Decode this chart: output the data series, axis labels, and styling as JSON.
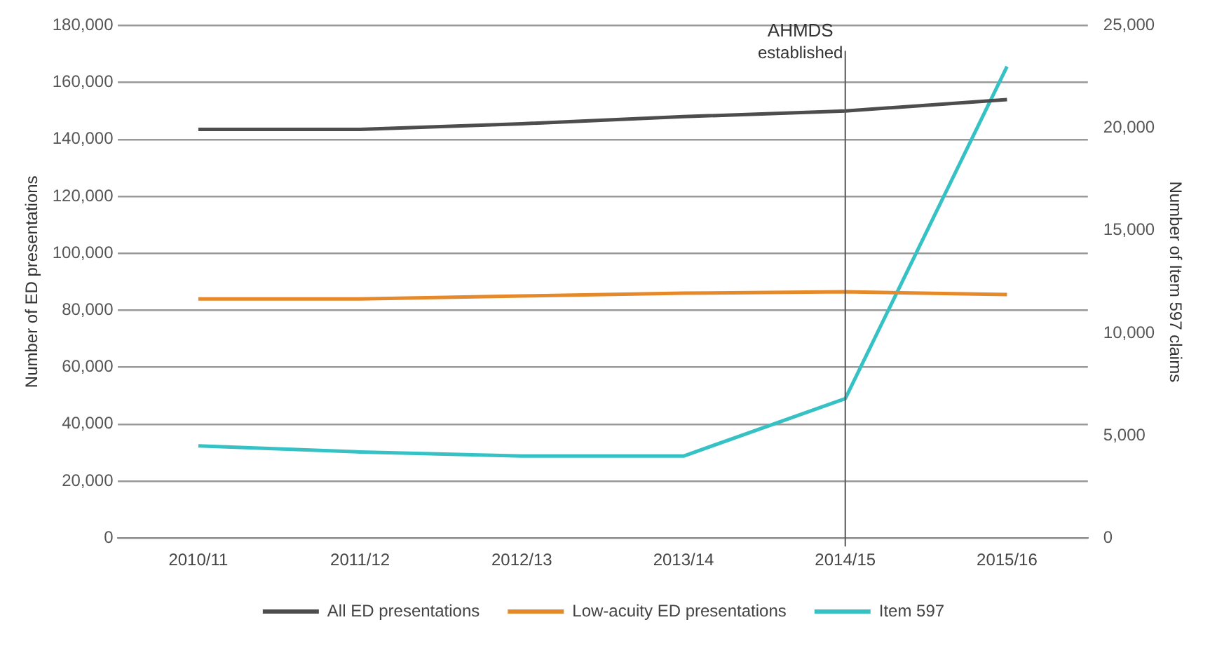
{
  "chart_data": {
    "type": "line",
    "categories": [
      "2010/11",
      "2011/12",
      "2012/13",
      "2013/14",
      "2014/15",
      "2015/16"
    ],
    "ylabel": "Number of ED presentations",
    "y2label": "Number of Item 597 claims",
    "series": [
      {
        "name": "All ED presentations",
        "color": "#4d4d4d",
        "values": [
          143500,
          143500,
          145500,
          148000,
          150000,
          154000
        ]
      },
      {
        "name": "Low-acuity ED presentations",
        "color": "#e5892a",
        "values": [
          84000,
          84000,
          85000,
          86000,
          86500,
          85500
        ]
      },
      {
        "name": "Item 597",
        "color": "#36c2c4",
        "values": [
          4500,
          4200,
          4000,
          4000,
          6800,
          23000
        ],
        "axis": "y2"
      }
    ],
    "ylim": [
      0,
      180000
    ],
    "yticks": [
      {
        "value": 0,
        "label": "0"
      },
      {
        "value": 20000,
        "label": "20,000"
      },
      {
        "value": 40000,
        "label": "40,000"
      },
      {
        "value": 60000,
        "label": "60,000"
      },
      {
        "value": 80000,
        "label": "80,000"
      },
      {
        "value": 100000,
        "label": "100,000"
      },
      {
        "value": 120000,
        "label": "120,000"
      },
      {
        "value": 140000,
        "label": "140,000"
      },
      {
        "value": 160000,
        "label": "160,000"
      },
      {
        "value": 180000,
        "label": "180,000"
      }
    ],
    "y2lim": [
      0,
      25000
    ],
    "y2ticks": [
      {
        "value": 0,
        "label": "0"
      },
      {
        "value": 5000,
        "label": "5,000"
      },
      {
        "value": 10000,
        "label": "10,000"
      },
      {
        "value": 15000,
        "label": "15,000"
      },
      {
        "value": 20000,
        "label": "20,000"
      },
      {
        "value": 25000,
        "label": "25,000"
      }
    ],
    "ref_lines": [
      {
        "axis": "x",
        "value": "2014/15",
        "label": "AHMDS established",
        "color": "#555555"
      }
    ],
    "grid": "y",
    "legend": "bottom",
    "marker": "none",
    "line_style": "solid"
  }
}
